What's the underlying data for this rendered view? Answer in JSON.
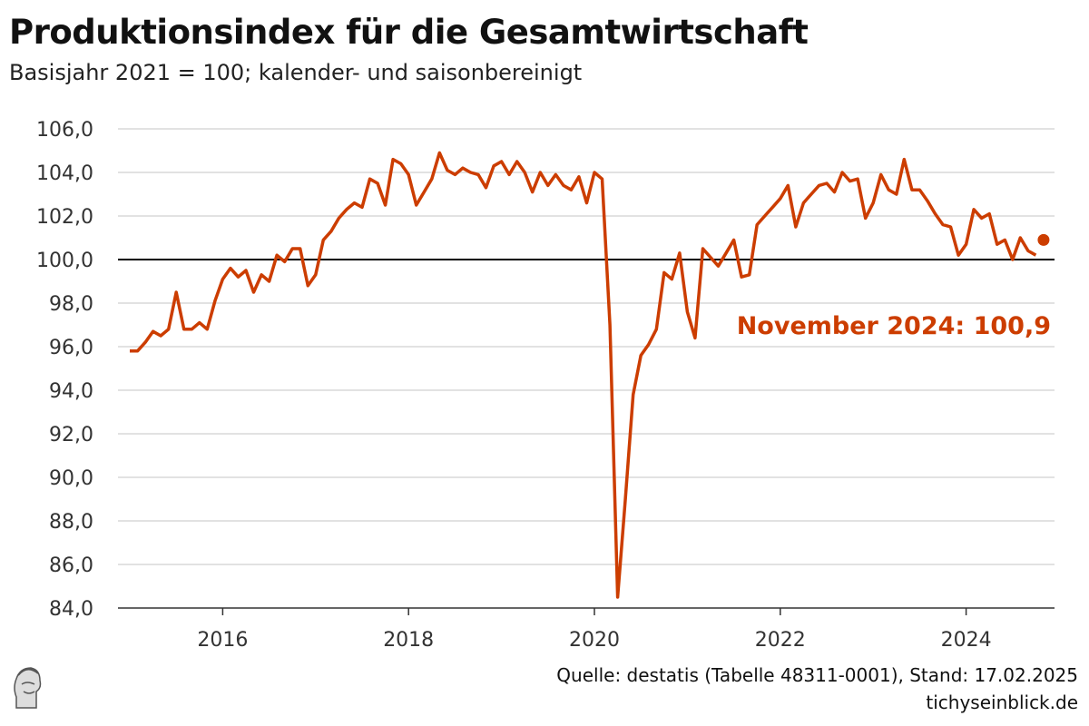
{
  "chart_data": {
    "type": "line",
    "title": "Produktionsindex für die Gesamtwirtschaft",
    "subtitle": "Basisjahr 2021 = 100; kalender- und saisonbereinigt",
    "xlabel": "",
    "ylabel": "",
    "ylim": [
      84,
      106
    ],
    "y_ticks": [
      "84,0",
      "86,0",
      "88,0",
      "90,0",
      "92,0",
      "94,0",
      "96,0",
      "98,0",
      "100,0",
      "102,0",
      "104,0",
      "106,0"
    ],
    "y_tick_values": [
      84,
      86,
      88,
      90,
      92,
      94,
      96,
      98,
      100,
      102,
      104,
      106
    ],
    "x_ticks": [
      "2016",
      "2018",
      "2020",
      "2022",
      "2024"
    ],
    "x_start": "2015-01",
    "frequency": "monthly",
    "reference_line": 100,
    "grid": true,
    "color": "#cc3d00",
    "series": [
      {
        "name": "Produktionsindex",
        "values": [
          95.8,
          95.8,
          96.2,
          96.7,
          96.5,
          96.8,
          98.5,
          96.8,
          96.8,
          97.1,
          96.8,
          98.1,
          99.1,
          99.6,
          99.2,
          99.5,
          98.5,
          99.3,
          99.0,
          100.2,
          99.9,
          100.5,
          100.5,
          98.8,
          99.3,
          100.9,
          101.3,
          101.9,
          102.3,
          102.6,
          102.4,
          103.7,
          103.5,
          102.5,
          104.6,
          104.4,
          103.9,
          102.5,
          103.1,
          103.7,
          104.9,
          104.1,
          103.9,
          104.2,
          104.0,
          103.9,
          103.3,
          104.3,
          104.5,
          103.9,
          104.5,
          104.0,
          103.1,
          104.0,
          103.4,
          103.9,
          103.4,
          103.2,
          103.8,
          102.6,
          104.0,
          103.7,
          97.0,
          84.5,
          89.0,
          93.8,
          95.6,
          96.1,
          96.8,
          99.4,
          99.1,
          100.3,
          97.6,
          96.4,
          100.5,
          100.1,
          99.7,
          100.3,
          100.9,
          99.2,
          99.3,
          101.6,
          102.0,
          102.4,
          102.8,
          103.4,
          101.5,
          102.6,
          103.0,
          103.4,
          103.5,
          103.1,
          104.0,
          103.6,
          103.7,
          101.9,
          102.6,
          103.9,
          103.2,
          103.0,
          104.6,
          103.2,
          103.2,
          102.7,
          102.1,
          101.6,
          101.5,
          100.2,
          100.7,
          102.3,
          101.9,
          102.1,
          100.7,
          100.9,
          100.0,
          101.0,
          100.4,
          100.2
        ]
      }
    ],
    "highlight": {
      "month": "2024-11",
      "value": 100.9
    },
    "annotation": "November 2024: 100,9"
  },
  "footer": {
    "source": "Quelle: destatis (Tabelle 48311-0001), Stand: 17.02.2025",
    "site": "tichyseinblick.de"
  }
}
